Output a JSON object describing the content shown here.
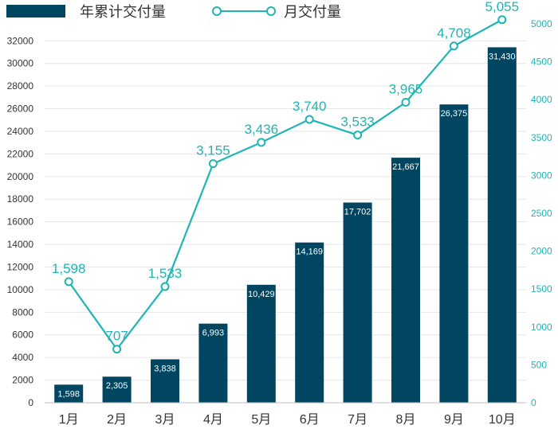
{
  "chart_data": {
    "type": "bar",
    "categories": [
      "1月",
      "2月",
      "3月",
      "4月",
      "5月",
      "6月",
      "7月",
      "8月",
      "9月",
      "10月"
    ],
    "series": [
      {
        "name": "年累计交付量",
        "kind": "bar",
        "axis": "left",
        "values": [
          1598,
          2305,
          3838,
          6993,
          10429,
          14169,
          17702,
          21667,
          26375,
          31430
        ],
        "labels": [
          "1,598",
          "2,305",
          "3,838",
          "6,993",
          "10,429",
          "14,169",
          "17,702",
          "21,667",
          "26,375",
          "31,430"
        ],
        "color": "#004660"
      },
      {
        "name": "月交付量",
        "kind": "line",
        "axis": "right",
        "values": [
          1598,
          707,
          1533,
          3155,
          3436,
          3740,
          3533,
          3965,
          4708,
          5055
        ],
        "labels": [
          "1,598",
          "707",
          "1,533",
          "3,155",
          "3,436",
          "3,740",
          "3,533",
          "3,965",
          "4,708",
          "5,055"
        ],
        "color": "#1fb5b5"
      }
    ],
    "y_left": {
      "range": [
        0,
        33500
      ],
      "ticks": [
        "0",
        "2000",
        "4000",
        "6000",
        "8000",
        "10000",
        "12000",
        "14000",
        "16000",
        "18000",
        "20000",
        "22000",
        "24000",
        "26000",
        "28000",
        "30000",
        "32000"
      ]
    },
    "y_right": {
      "range": [
        0,
        5000
      ],
      "ticks": [
        "0",
        "500",
        "1000",
        "1500",
        "2000",
        "2500",
        "3000",
        "3500",
        "4000",
        "4500",
        "5000"
      ]
    },
    "grid": true,
    "legend_position": "top-left"
  }
}
